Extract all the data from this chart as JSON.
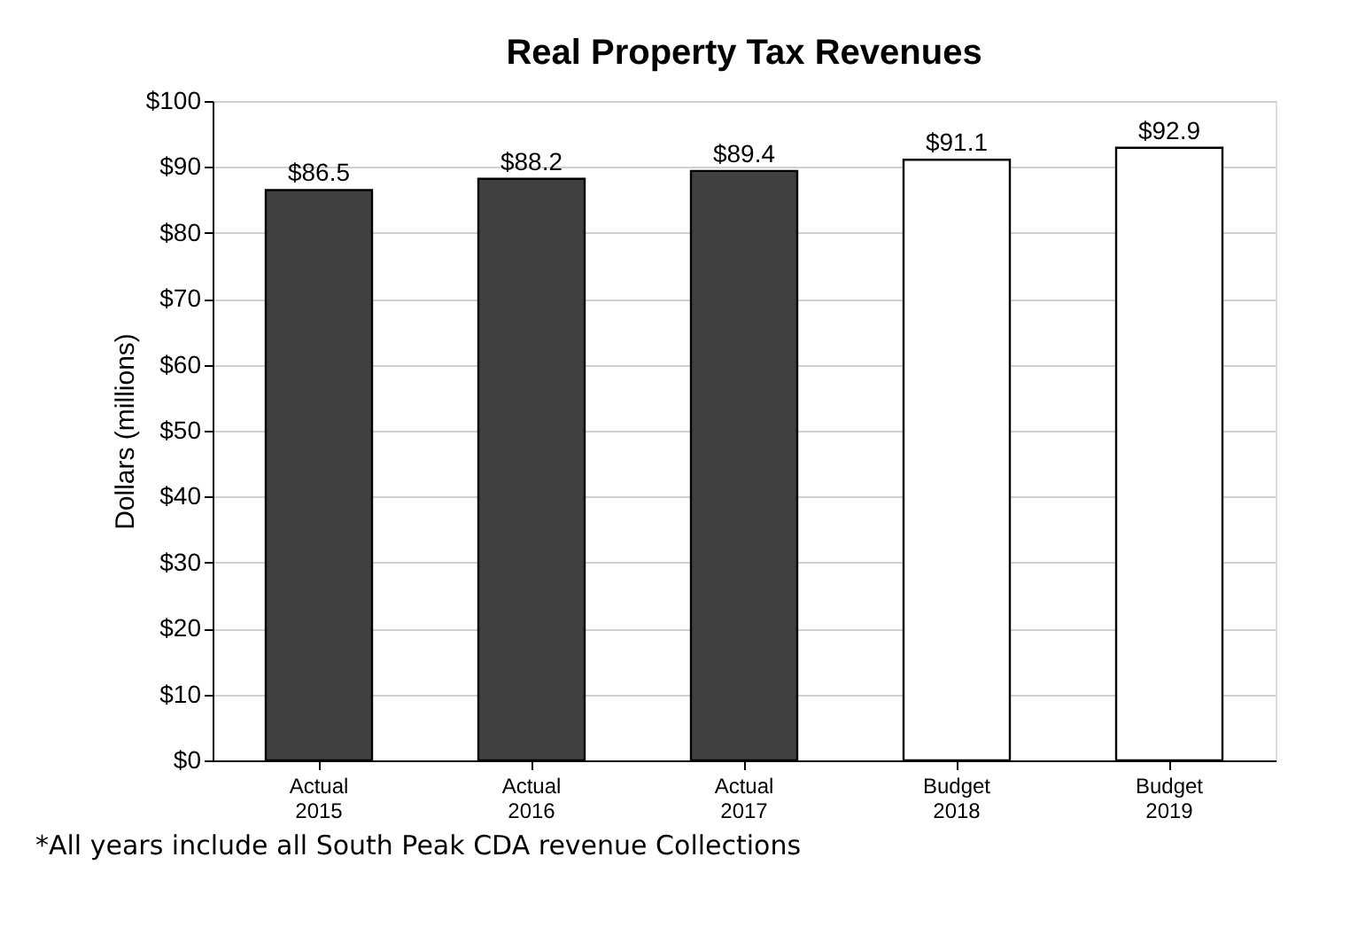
{
  "chart_data": {
    "type": "bar",
    "title": "Real Property Tax Revenues",
    "ylabel": "Dollars  (millions)",
    "categories": [
      "Actual\n2015",
      "Actual\n2016",
      "Actual\n2017",
      "Budget\n2018",
      "Budget\n2019"
    ],
    "values": [
      86.5,
      88.2,
      89.4,
      91.1,
      92.9
    ],
    "colors": [
      "#404040",
      "#404040",
      "#404040",
      "#ffffff",
      "#ffffff"
    ],
    "ylim": [
      0,
      100
    ],
    "yticks": [
      {
        "value": 0,
        "label": "$0"
      },
      {
        "value": 10,
        "label": "$10"
      },
      {
        "value": 20,
        "label": "$20"
      },
      {
        "value": 30,
        "label": "$30"
      },
      {
        "value": 40,
        "label": "$40"
      },
      {
        "value": 50,
        "label": "$50"
      },
      {
        "value": 60,
        "label": "$60"
      },
      {
        "value": 70,
        "label": "$70"
      },
      {
        "value": 80,
        "label": "$80"
      },
      {
        "value": 90,
        "label": "$90"
      },
      {
        "value": 100,
        "label": "$100"
      }
    ],
    "value_labels": [
      "$86.5",
      "$88.2",
      "$89.4",
      "$91.1",
      "$92.9"
    ],
    "grid": "y",
    "annotations": [
      "*All years include all South Peak CDA revenue Collections"
    ]
  }
}
